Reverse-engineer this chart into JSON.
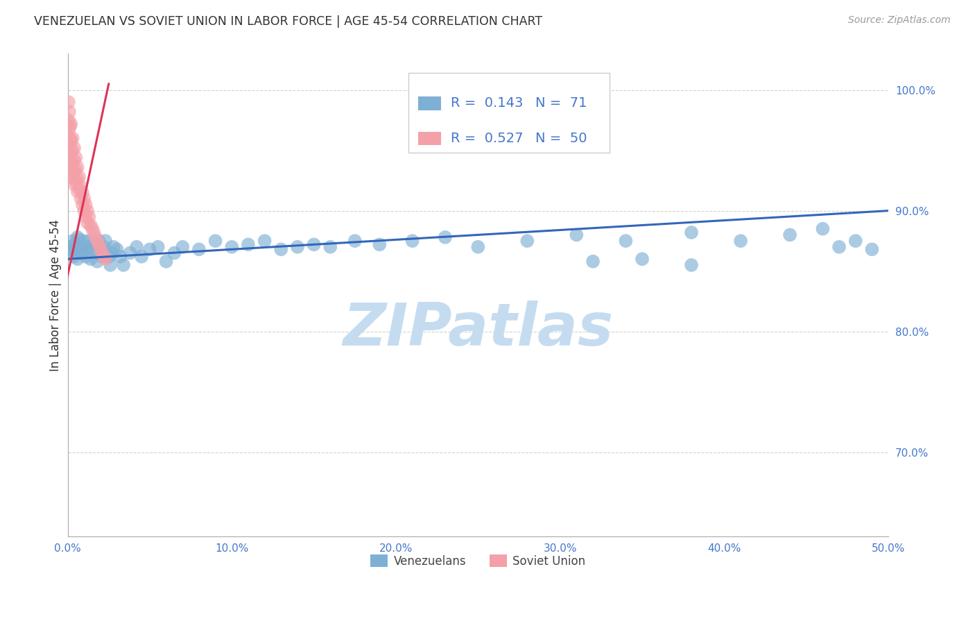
{
  "title": "VENEZUELAN VS SOVIET UNION IN LABOR FORCE | AGE 45-54 CORRELATION CHART",
  "source": "Source: ZipAtlas.com",
  "ylabel": "In Labor Force | Age 45-54",
  "xlim": [
    0.0,
    0.5
  ],
  "ylim": [
    0.63,
    1.03
  ],
  "yticks": [
    0.7,
    0.8,
    0.9,
    1.0
  ],
  "ytick_labels": [
    "70.0%",
    "80.0%",
    "90.0%",
    "100.0%"
  ],
  "xticks": [
    0.0,
    0.1,
    0.2,
    0.3,
    0.4,
    0.5
  ],
  "xtick_labels": [
    "0.0%",
    "10.0%",
    "20.0%",
    "30.0%",
    "40.0%",
    "50.0%"
  ],
  "venezuelan_R": "0.143",
  "venezuelan_N": "71",
  "soviet_R": "0.527",
  "soviet_N": "50",
  "blue_color": "#7EB0D5",
  "pink_color": "#F4A0A8",
  "trend_blue": "#3366BB",
  "trend_pink": "#DD3355",
  "tick_color": "#4477CC",
  "watermark": "ZIPatlas",
  "watermark_color": "#C5DCF0",
  "background_color": "#FFFFFF",
  "grid_color": "#CCCCCC",
  "venezuelan_x": [
    0.001,
    0.002,
    0.003,
    0.003,
    0.004,
    0.004,
    0.005,
    0.006,
    0.006,
    0.007,
    0.007,
    0.008,
    0.009,
    0.01,
    0.01,
    0.011,
    0.012,
    0.013,
    0.014,
    0.015,
    0.016,
    0.017,
    0.018,
    0.018,
    0.019,
    0.02,
    0.021,
    0.022,
    0.023,
    0.025,
    0.026,
    0.027,
    0.028,
    0.03,
    0.032,
    0.034,
    0.038,
    0.042,
    0.045,
    0.05,
    0.055,
    0.06,
    0.065,
    0.07,
    0.08,
    0.09,
    0.1,
    0.11,
    0.12,
    0.13,
    0.14,
    0.15,
    0.16,
    0.175,
    0.19,
    0.21,
    0.23,
    0.25,
    0.28,
    0.31,
    0.34,
    0.38,
    0.41,
    0.44,
    0.46,
    0.47,
    0.48,
    0.49,
    0.38,
    0.35,
    0.32
  ],
  "venezuelan_y": [
    0.87,
    0.868,
    0.865,
    0.875,
    0.862,
    0.872,
    0.868,
    0.86,
    0.878,
    0.866,
    0.876,
    0.87,
    0.865,
    0.868,
    0.875,
    0.862,
    0.87,
    0.875,
    0.86,
    0.868,
    0.872,
    0.865,
    0.87,
    0.858,
    0.875,
    0.868,
    0.862,
    0.87,
    0.875,
    0.862,
    0.855,
    0.865,
    0.87,
    0.868,
    0.862,
    0.855,
    0.865,
    0.87,
    0.862,
    0.868,
    0.87,
    0.858,
    0.865,
    0.87,
    0.868,
    0.875,
    0.87,
    0.872,
    0.875,
    0.868,
    0.87,
    0.872,
    0.87,
    0.875,
    0.872,
    0.875,
    0.878,
    0.87,
    0.875,
    0.88,
    0.875,
    0.882,
    0.875,
    0.88,
    0.885,
    0.87,
    0.875,
    0.868,
    0.855,
    0.86,
    0.858
  ],
  "soviet_x": [
    0.0005,
    0.0005,
    0.001,
    0.001,
    0.001,
    0.001,
    0.0015,
    0.0015,
    0.002,
    0.002,
    0.002,
    0.002,
    0.002,
    0.003,
    0.003,
    0.003,
    0.003,
    0.004,
    0.004,
    0.004,
    0.004,
    0.005,
    0.005,
    0.005,
    0.006,
    0.006,
    0.006,
    0.007,
    0.007,
    0.008,
    0.008,
    0.009,
    0.009,
    0.01,
    0.01,
    0.011,
    0.011,
    0.012,
    0.012,
    0.013,
    0.014,
    0.015,
    0.016,
    0.017,
    0.018,
    0.019,
    0.02,
    0.021,
    0.022,
    0.023
  ],
  "soviet_y": [
    0.99,
    0.975,
    0.982,
    0.968,
    0.955,
    0.945,
    0.97,
    0.96,
    0.972,
    0.958,
    0.948,
    0.938,
    0.928,
    0.96,
    0.95,
    0.94,
    0.93,
    0.952,
    0.942,
    0.932,
    0.922,
    0.944,
    0.934,
    0.924,
    0.936,
    0.926,
    0.916,
    0.928,
    0.918,
    0.92,
    0.91,
    0.915,
    0.905,
    0.91,
    0.9,
    0.905,
    0.895,
    0.9,
    0.89,
    0.895,
    0.888,
    0.885,
    0.882,
    0.878,
    0.875,
    0.872,
    0.868,
    0.865,
    0.862,
    0.86
  ],
  "ven_trend_x": [
    0.0,
    0.5
  ],
  "ven_trend_y": [
    0.86,
    0.9
  ],
  "sov_trend_x": [
    -0.001,
    0.025
  ],
  "sov_trend_y": [
    0.84,
    1.005
  ]
}
